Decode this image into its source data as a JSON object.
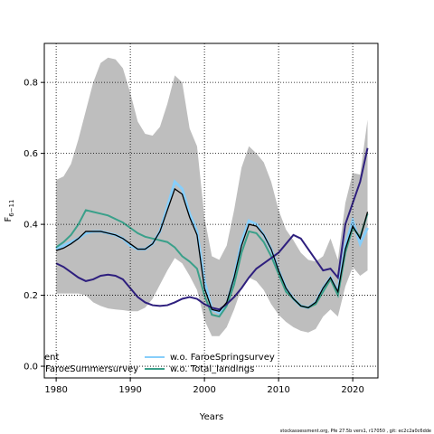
{
  "chart_data": {
    "type": "line",
    "xlabel": "Years",
    "ylabel": {
      "main": "F",
      "sub": "6−11"
    },
    "footer": "stockassessment.org, Pfe 27.5b vers1, r17050 , git: ec2c2a0c6dde",
    "grid": true,
    "legend": "bottom-left",
    "x": [
      1980,
      1981,
      1982,
      1983,
      1984,
      1985,
      1986,
      1987,
      1988,
      1989,
      1990,
      1991,
      1992,
      1993,
      1994,
      1995,
      1996,
      1997,
      1998,
      1999,
      2000,
      2001,
      2002,
      2003,
      2004,
      2005,
      2006,
      2007,
      2008,
      2009,
      2010,
      2011,
      2012,
      2013,
      2014,
      2015,
      2016,
      2017,
      2018,
      2019,
      2020,
      2021,
      2022
    ],
    "xlim": [
      1978.4,
      2023.4
    ],
    "ylim": [
      -0.033,
      0.91
    ],
    "xticks": [
      1980,
      1990,
      2000,
      2010,
      2020
    ],
    "yticks": [
      {
        "value": 0,
        "label": "0.0"
      },
      {
        "value": 0.2,
        "label": "0.2"
      },
      {
        "value": 0.4,
        "label": "0.4"
      },
      {
        "value": 0.6,
        "label": "0.6"
      },
      {
        "value": 0.8,
        "label": "0.8"
      }
    ],
    "band": {
      "color": "#bebebe",
      "upper": [
        0.525,
        0.535,
        0.57,
        0.64,
        0.72,
        0.8,
        0.855,
        0.87,
        0.865,
        0.84,
        0.77,
        0.69,
        0.655,
        0.65,
        0.675,
        0.74,
        0.82,
        0.8,
        0.67,
        0.62,
        0.42,
        0.31,
        0.3,
        0.34,
        0.44,
        0.56,
        0.62,
        0.6,
        0.575,
        0.52,
        0.44,
        0.385,
        0.355,
        0.32,
        0.3,
        0.295,
        0.31,
        0.36,
        0.3,
        0.46,
        0.545,
        0.54,
        0.695
      ],
      "lower": [
        0.205,
        0.205,
        0.205,
        0.205,
        0.2,
        0.18,
        0.17,
        0.163,
        0.16,
        0.158,
        0.155,
        0.155,
        0.165,
        0.19,
        0.23,
        0.27,
        0.305,
        0.29,
        0.255,
        0.215,
        0.13,
        0.085,
        0.085,
        0.11,
        0.16,
        0.22,
        0.25,
        0.24,
        0.215,
        0.175,
        0.145,
        0.125,
        0.11,
        0.1,
        0.095,
        0.105,
        0.14,
        0.16,
        0.14,
        0.225,
        0.28,
        0.255,
        0.27
      ]
    },
    "series": [
      {
        "name": "ent",
        "color": "#000000",
        "values": [
          0.326,
          0.333,
          0.345,
          0.36,
          0.38,
          0.38,
          0.38,
          0.375,
          0.37,
          0.36,
          0.345,
          0.33,
          0.33,
          0.345,
          0.38,
          0.44,
          0.5,
          0.485,
          0.42,
          0.37,
          0.22,
          0.16,
          0.155,
          0.18,
          0.25,
          0.34,
          0.4,
          0.395,
          0.37,
          0.33,
          0.27,
          0.22,
          0.19,
          0.17,
          0.165,
          0.18,
          0.22,
          0.25,
          0.21,
          0.33,
          0.395,
          0.36,
          0.435
        ]
      },
      {
        "name": "FaroeSummersurvey",
        "color": "#2e1f7e",
        "values": [
          0.29,
          0.28,
          0.265,
          0.25,
          0.24,
          0.245,
          0.255,
          0.258,
          0.255,
          0.245,
          0.22,
          0.195,
          0.18,
          0.172,
          0.17,
          0.172,
          0.18,
          0.19,
          0.195,
          0.19,
          0.175,
          0.165,
          0.16,
          0.175,
          0.195,
          0.22,
          0.25,
          0.275,
          0.29,
          0.305,
          0.32,
          0.345,
          0.37,
          0.36,
          0.33,
          0.3,
          0.27,
          0.275,
          0.25,
          0.4,
          0.46,
          0.52,
          0.615
        ]
      },
      {
        "name": "w.o. FaroeSpringsurvey",
        "color": "#87cefa",
        "values": [
          0.33,
          0.34,
          0.35,
          0.36,
          0.375,
          0.38,
          0.38,
          0.375,
          0.37,
          0.36,
          0.34,
          0.33,
          0.33,
          0.345,
          0.38,
          0.45,
          0.52,
          0.5,
          0.43,
          0.38,
          0.24,
          0.16,
          0.15,
          0.175,
          0.25,
          0.35,
          0.41,
          0.4,
          0.37,
          0.33,
          0.27,
          0.22,
          0.19,
          0.17,
          0.165,
          0.18,
          0.22,
          0.25,
          0.21,
          0.34,
          0.41,
          0.345,
          0.39
        ]
      },
      {
        "name": "w.o. Total_landings",
        "color": "#3aa08a",
        "values": [
          0.335,
          0.35,
          0.37,
          0.4,
          0.44,
          0.435,
          0.43,
          0.425,
          0.415,
          0.405,
          0.39,
          0.375,
          0.365,
          0.36,
          0.355,
          0.35,
          0.335,
          0.31,
          0.295,
          0.275,
          0.2,
          0.145,
          0.14,
          0.17,
          0.23,
          0.32,
          0.38,
          0.375,
          0.35,
          0.31,
          0.26,
          0.21,
          0.19,
          0.17,
          0.165,
          0.175,
          0.21,
          0.245,
          0.2,
          0.32,
          0.39,
          0.365,
          0.43
        ]
      }
    ]
  }
}
